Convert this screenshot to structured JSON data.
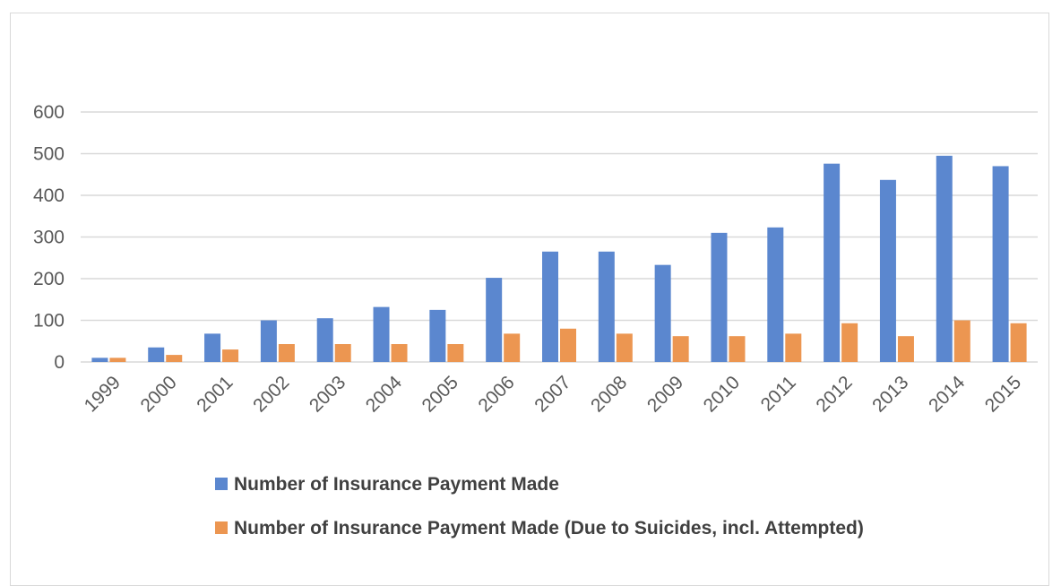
{
  "chart_data": {
    "type": "bar",
    "title": "",
    "xlabel": "",
    "ylabel": "",
    "categories": [
      "1999",
      "2000",
      "2001",
      "2002",
      "2003",
      "2004",
      "2005",
      "2006",
      "2007",
      "2008",
      "2009",
      "2010",
      "2011",
      "2012",
      "2013",
      "2014",
      "2015"
    ],
    "series": [
      {
        "name": "Number of Insurance Payment Made",
        "color": "#5b87cf",
        "values": [
          10,
          35,
          68,
          100,
          105,
          132,
          125,
          202,
          265,
          265,
          233,
          310,
          323,
          476,
          437,
          495,
          470
        ]
      },
      {
        "name": "Number of Insurance Payment Made (Due to Suicides, incl. Attempted)",
        "color": "#ec9651",
        "values": [
          10,
          17,
          30,
          43,
          43,
          43,
          43,
          68,
          80,
          68,
          62,
          62,
          68,
          93,
          62,
          100,
          93
        ]
      }
    ],
    "ylim": [
      0,
      600
    ],
    "yticks": [
      0,
      100,
      200,
      300,
      400,
      500,
      600
    ],
    "grid": true,
    "legend_position": "bottom"
  }
}
